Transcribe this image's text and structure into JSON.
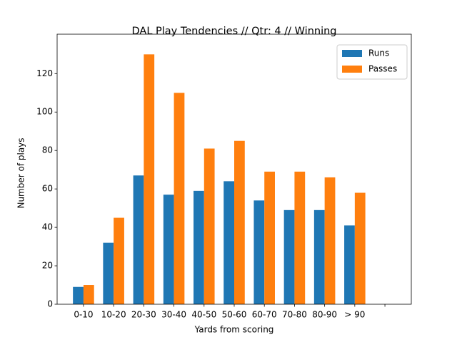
{
  "chart_data": {
    "type": "bar",
    "title": "DAL Play Tendencies // Qtr: 4 // Winning",
    "x_label": "Yards from scoring",
    "y_label": "Number of plays",
    "categories": [
      "0-10",
      "10-20",
      "20-30",
      "30-40",
      "40-50",
      "50-60",
      "60-70",
      "70-80",
      "80-90",
      "> 90",
      null
    ],
    "series": [
      {
        "name": "Runs",
        "color": "#1f77b4",
        "values": [
          9,
          32,
          67,
          57,
          59,
          64,
          54,
          49,
          49,
          41,
          null
        ]
      },
      {
        "name": "Passes",
        "color": "#ff7f0e",
        "values": [
          10,
          45,
          130,
          110,
          81,
          85,
          69,
          69,
          66,
          58,
          null
        ]
      }
    ],
    "ylim": [
      0,
      140.5
    ],
    "yticks": [
      0,
      20,
      40,
      60,
      80,
      100,
      120
    ],
    "legend": "upper right"
  }
}
